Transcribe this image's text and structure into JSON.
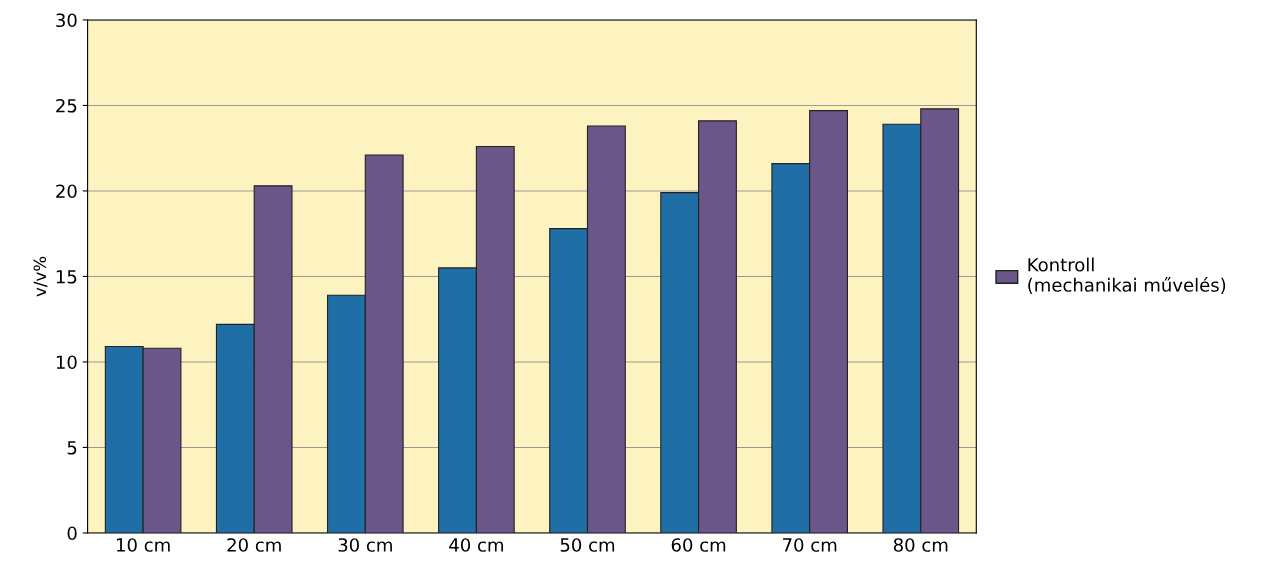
{
  "chart_data": {
    "type": "bar",
    "ylabel": "v/v%",
    "categories": [
      "10 cm",
      "20 cm",
      "30 cm",
      "40 cm",
      "50 cm",
      "60 cm",
      "70 cm",
      "80 cm"
    ],
    "series": [
      {
        "color": "#1f6fa6",
        "values": [
          10.9,
          12.2,
          13.9,
          15.5,
          17.8,
          19.9,
          21.6,
          23.9
        ]
      },
      {
        "name": "Kontroll\n(mechanikai művelés)",
        "color": "#6b5689",
        "values": [
          10.8,
          20.3,
          22.1,
          22.6,
          23.8,
          24.1,
          24.7,
          24.8
        ]
      }
    ],
    "ylim": [
      0,
      30
    ],
    "yticks": [
      0,
      5,
      10,
      15,
      20,
      25,
      30
    ],
    "grid": "y",
    "legend": "right"
  }
}
